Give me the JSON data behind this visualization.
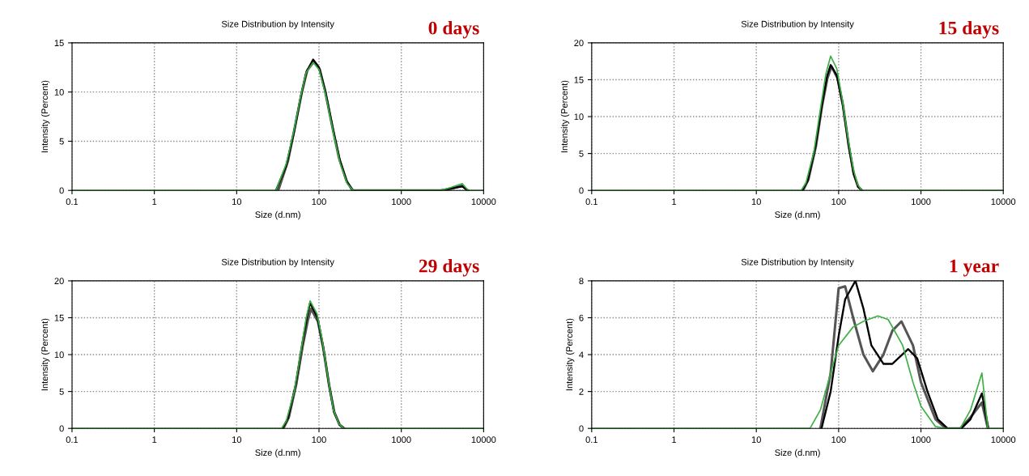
{
  "chart_data": [
    {
      "type": "line",
      "title": "Size Distribution by Intensity",
      "xlabel": "Size (d.nm)",
      "ylabel": "Intensity (Percent)",
      "annotations": [
        "0 days"
      ],
      "log": "x",
      "grid": true,
      "xlim": [
        0.1,
        10000
      ],
      "xticks": [
        0.1,
        1,
        10,
        100,
        1000,
        10000
      ],
      "ylim": [
        0,
        15
      ],
      "yticks": [
        0,
        5,
        10,
        15
      ],
      "series": [
        {
          "color": "#555555",
          "x": [
            32,
            42,
            52,
            62,
            72,
            87,
            102,
            118,
            145,
            175,
            215,
            255,
            3200,
            4200,
            5500,
            6300
          ],
          "values": [
            0,
            3,
            6.8,
            10,
            12.2,
            13.1,
            12.3,
            10.2,
            6.5,
            3.3,
            1,
            0,
            0,
            0.2,
            0.5,
            0
          ]
        },
        {
          "color": "#000000",
          "x": [
            30,
            40,
            50,
            60,
            70,
            85,
            100,
            120,
            150,
            180,
            220,
            260,
            3000,
            4000,
            5500,
            6500
          ],
          "values": [
            0,
            2.5,
            6,
            9.5,
            12,
            13.3,
            12.5,
            10,
            6,
            3,
            0.8,
            0,
            0,
            0.2,
            0.4,
            0
          ]
        },
        {
          "color": "#3cb043",
          "x": [
            0.1,
            30,
            40,
            50,
            60,
            70,
            85,
            100,
            120,
            150,
            180,
            220,
            260,
            3000,
            4000,
            5500,
            6500,
            10000
          ],
          "values": [
            0,
            0,
            2.7,
            6.2,
            9.6,
            12,
            13,
            12.3,
            9.8,
            5.8,
            2.8,
            0.7,
            0,
            0,
            0.3,
            0.7,
            0,
            0
          ]
        }
      ]
    },
    {
      "type": "line",
      "title": "Size Distribution by Intensity",
      "xlabel": "Size (d.nm)",
      "ylabel": "Intensity (Percent)",
      "annotations": [
        "15 days"
      ],
      "log": "x",
      "grid": true,
      "xlim": [
        0.1,
        10000
      ],
      "xticks": [
        0.1,
        1,
        10,
        100,
        1000,
        10000
      ],
      "ylim": [
        0,
        20
      ],
      "yticks": [
        0,
        5,
        10,
        15,
        20
      ],
      "series": [
        {
          "color": "#555555",
          "x": [
            37,
            43,
            53,
            63,
            73,
            82,
            97,
            113,
            133,
            153,
            173,
            192
          ],
          "values": [
            0,
            1.5,
            6,
            11.5,
            15.2,
            16.8,
            15.2,
            11.5,
            6,
            2.2,
            0.5,
            0
          ]
        },
        {
          "color": "#000000",
          "x": [
            36,
            42,
            52,
            62,
            72,
            80,
            95,
            112,
            132,
            152,
            172,
            190
          ],
          "values": [
            0,
            1.3,
            5.8,
            11.3,
            15.4,
            17,
            15.6,
            11.7,
            6.2,
            2.3,
            0.5,
            0
          ]
        },
        {
          "color": "#3cb043",
          "x": [
            0.1,
            35,
            40,
            50,
            60,
            70,
            80,
            95,
            110,
            130,
            150,
            170,
            190,
            10000
          ],
          "values": [
            0,
            0,
            1,
            5.2,
            11,
            15.8,
            18.2,
            16.5,
            12.5,
            7,
            3,
            0.8,
            0,
            0
          ]
        }
      ]
    },
    {
      "type": "line",
      "title": "Size Distribution by Intensity",
      "xlabel": "Size (d.nm)",
      "ylabel": "Intensity (Percent)",
      "annotations": [
        "29 days"
      ],
      "log": "x",
      "grid": true,
      "xlim": [
        0.1,
        10000
      ],
      "xticks": [
        0.1,
        1,
        10,
        100,
        1000,
        10000
      ],
      "ylim": [
        0,
        20
      ],
      "yticks": [
        0,
        5,
        10,
        15,
        20
      ],
      "series": [
        {
          "color": "#555555",
          "x": [
            37,
            43,
            53,
            63,
            73,
            80,
            97,
            113,
            133,
            153,
            178,
            203
          ],
          "values": [
            0,
            1.5,
            6,
            11,
            14.6,
            16.2,
            14.5,
            10.8,
            5.8,
            2.2,
            0.5,
            0
          ]
        },
        {
          "color": "#000000",
          "x": [
            36,
            42,
            52,
            62,
            72,
            78,
            96,
            112,
            132,
            152,
            177,
            201
          ],
          "values": [
            0,
            1.4,
            5.9,
            11.2,
            15.3,
            17,
            15,
            11.2,
            6,
            2.3,
            0.5,
            0
          ]
        },
        {
          "color": "#3cb043",
          "x": [
            0.1,
            35,
            40,
            50,
            60,
            70,
            78,
            95,
            110,
            130,
            150,
            175,
            200,
            10000
          ],
          "values": [
            0,
            0,
            1,
            5,
            10.3,
            15,
            17.3,
            15.5,
            11.8,
            6.5,
            2.5,
            0.6,
            0,
            0
          ]
        }
      ]
    },
    {
      "type": "line",
      "title": "Size Distribution by Intensity",
      "xlabel": "Size (d.nm)",
      "ylabel": "Intensity (Percent)",
      "annotations": [
        "1 year"
      ],
      "log": "x",
      "grid": true,
      "xlim": [
        0.1,
        10000
      ],
      "xticks": [
        0.1,
        1,
        10,
        100,
        1000,
        10000
      ],
      "ylim": [
        0,
        8
      ],
      "yticks": [
        0,
        2,
        4,
        6,
        8
      ],
      "series": [
        {
          "color": "#555555",
          "x": [
            60,
            80,
            100,
            120,
            150,
            200,
            260,
            350,
            450,
            580,
            800,
            1000,
            1500,
            2000,
            3000,
            4000,
            5500,
            6500
          ],
          "values": [
            0,
            3,
            7.6,
            7.7,
            6,
            4,
            3.1,
            4,
            5.3,
            5.8,
            4.5,
            2.5,
            0.5,
            0,
            0,
            0.6,
            1.4,
            0
          ]
        },
        {
          "color": "#000000",
          "x": [
            62,
            80,
            100,
            120,
            160,
            200,
            250,
            350,
            450,
            700,
            900,
            1200,
            1600,
            2100,
            3100,
            4000,
            5500,
            6600
          ],
          "values": [
            0,
            2,
            5,
            7,
            8,
            6.5,
            4.5,
            3.5,
            3.5,
            4.3,
            3.8,
            2,
            0.5,
            0,
            0,
            0.5,
            1.9,
            0
          ]
        },
        {
          "color": "#3cb043",
          "x": [
            0.1,
            45,
            60,
            80,
            100,
            150,
            200,
            300,
            400,
            600,
            800,
            1000,
            1500,
            2000,
            3000,
            4000,
            5500,
            6500,
            10000
          ],
          "values": [
            0,
            0,
            1,
            3,
            4.5,
            5.5,
            5.8,
            6.1,
            5.9,
            4.5,
            2.5,
            1.2,
            0.1,
            0,
            0,
            1,
            3,
            0,
            0
          ]
        }
      ]
    }
  ]
}
